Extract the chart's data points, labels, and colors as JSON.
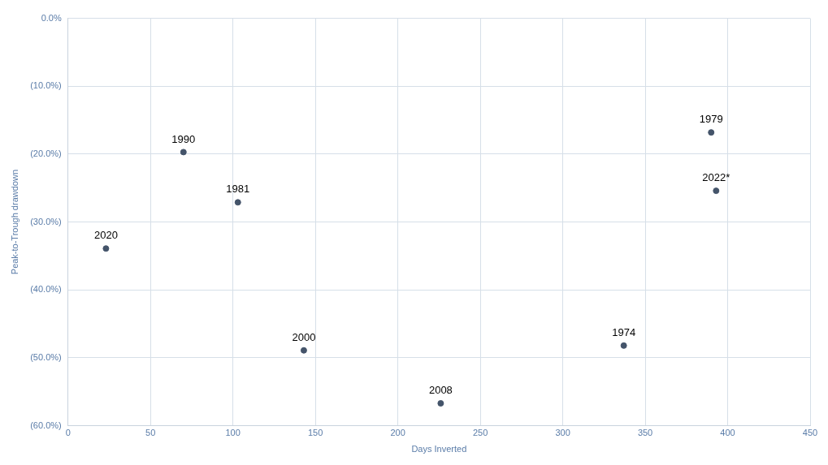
{
  "chart_data": {
    "type": "scatter",
    "xlabel": "Days Inverted",
    "ylabel": "Peak-to-Trough drawdown",
    "x": [
      23,
      70,
      103,
      143,
      226,
      337,
      390,
      393
    ],
    "series": [
      {
        "color": "#44546a",
        "values": [
          -33.9,
          -19.7,
          -27.1,
          -48.9,
          -56.7,
          -48.2,
          -16.8,
          -25.4
        ]
      }
    ],
    "xlim": [
      0,
      450
    ],
    "xticks": [
      0,
      50,
      100,
      150,
      200,
      250,
      300,
      350,
      400,
      450
    ],
    "ylim": [
      -60,
      0
    ],
    "yticks": [
      {
        "value": 0,
        "label": "0.0%"
      },
      {
        "value": -10,
        "label": "(10.0%)"
      },
      {
        "value": -20,
        "label": "(20.0%)"
      },
      {
        "value": -30,
        "label": "(30.0%)"
      },
      {
        "value": -40,
        "label": "(40.0%)"
      },
      {
        "value": -50,
        "label": "(50.0%)"
      },
      {
        "value": -60,
        "label": "(60.0%)"
      }
    ],
    "grid": true,
    "legend": false,
    "marker": "circle",
    "annotations": [
      {
        "text": "2020",
        "x": 23,
        "y": -33.9
      },
      {
        "text": "1990",
        "x": 70,
        "y": -19.7
      },
      {
        "text": "1981",
        "x": 103,
        "y": -27.1
      },
      {
        "text": "2000",
        "x": 143,
        "y": -48.9
      },
      {
        "text": "2008",
        "x": 226,
        "y": -56.7
      },
      {
        "text": "1974",
        "x": 337,
        "y": -48.2
      },
      {
        "text": "1979",
        "x": 390,
        "y": -16.8
      },
      {
        "text": "2022*",
        "x": 393,
        "y": -25.4
      }
    ]
  }
}
